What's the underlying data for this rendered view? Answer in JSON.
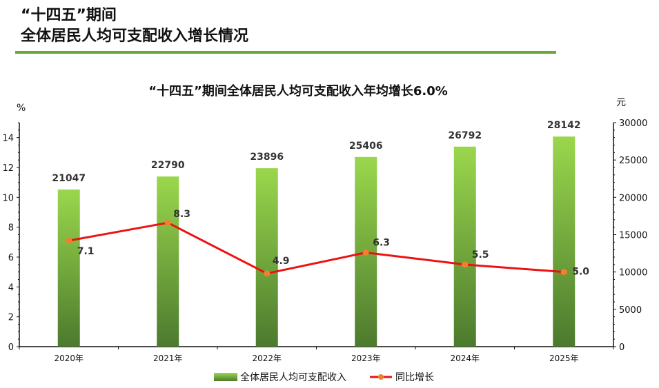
{
  "page": {
    "title_line1": "“十四五”期间",
    "title_line2": "全体居民人均可支配收入增长情况"
  },
  "colors": {
    "accent_rule": "#6aaa3a",
    "bar_top": "#9ad74c",
    "bar_bottom": "#4c7a2e",
    "line": "#ee1111",
    "marker": "#f08030"
  },
  "chart_data": {
    "type": "bar",
    "title": "“十四五”期间全体居民人均可支配收入年均增长6.0%",
    "categories": [
      "2020年",
      "2021年",
      "2022年",
      "2023年",
      "2024年",
      "2025年"
    ],
    "series": [
      {
        "name": "全体居民人均可支配收入",
        "type": "bar",
        "axis": "right",
        "values": [
          21047,
          22790,
          23896,
          25406,
          26792,
          28142
        ]
      },
      {
        "name": "同比增长",
        "type": "line",
        "axis": "left",
        "values": [
          7.1,
          8.3,
          4.9,
          6.3,
          5.5,
          5.0
        ]
      }
    ],
    "y_left": {
      "unit": "%",
      "range": [
        0,
        15
      ],
      "ticks": [
        0,
        2,
        4,
        6,
        8,
        10,
        12,
        14
      ]
    },
    "y_right": {
      "unit": "元",
      "range": [
        0,
        30000
      ],
      "ticks": [
        0,
        5000,
        10000,
        15000,
        20000,
        25000,
        30000
      ]
    },
    "grid": false,
    "legend_position": "bottom"
  }
}
